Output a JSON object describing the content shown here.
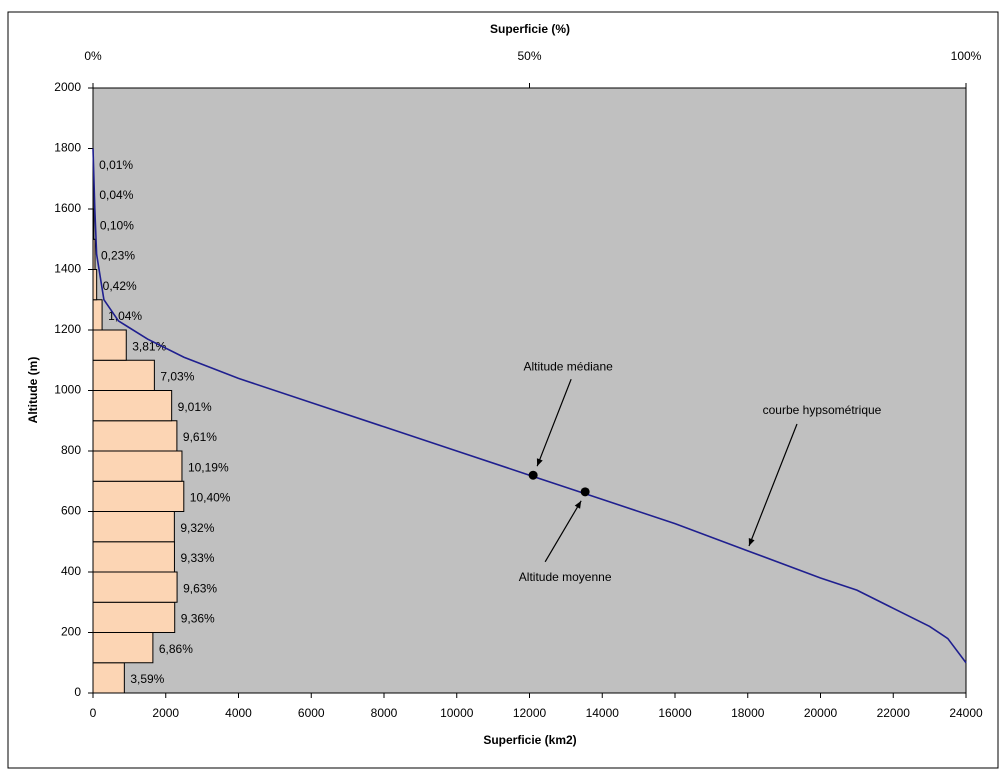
{
  "chart_data": {
    "type": "line",
    "xlabel": "Superficie (km2)",
    "x2label": "Superficie (%)",
    "ylabel": "Altitude (m)",
    "xlim": [
      0,
      24000
    ],
    "xticks": [
      0,
      2000,
      4000,
      6000,
      8000,
      10000,
      12000,
      14000,
      16000,
      18000,
      20000,
      22000,
      24000
    ],
    "x2lim": [
      0,
      100
    ],
    "x2ticks": [
      {
        "value": 0,
        "label": "0%"
      },
      {
        "value": 50,
        "label": "50%"
      },
      {
        "value": 100,
        "label": "100%"
      }
    ],
    "ylim": [
      0,
      2000
    ],
    "yticks": [
      0,
      200,
      400,
      600,
      800,
      1000,
      1200,
      1400,
      1600,
      1800,
      2000
    ],
    "background": "#c0c0c0",
    "color": "#1f1f8f",
    "x": [
      0,
      50,
      100,
      300,
      700,
      1500,
      2500,
      4000,
      6000,
      8000,
      10000,
      12000,
      14000,
      16000,
      18000,
      20000,
      21000,
      22000,
      23000,
      23500,
      24000
    ],
    "values": [
      1800,
      1600,
      1450,
      1300,
      1230,
      1170,
      1110,
      1040,
      960,
      880,
      800,
      720,
      640,
      560,
      470,
      380,
      340,
      280,
      220,
      180,
      100
    ],
    "bars": {
      "type": "bar",
      "color": "#fcd5b4",
      "bins": [
        0,
        100,
        200,
        300,
        400,
        500,
        600,
        700,
        800,
        900,
        1000,
        1100,
        1200,
        1300,
        1400,
        1500,
        1600,
        1700,
        1800
      ],
      "values": [
        3.59,
        6.86,
        9.36,
        9.63,
        9.33,
        9.32,
        10.4,
        10.19,
        9.61,
        9.01,
        7.03,
        3.81,
        1.04,
        0.42,
        0.23,
        0.1,
        0.04,
        0.01
      ],
      "value_labels": [
        "3,59%",
        "6,86%",
        "9,36%",
        "9,63%",
        "9,33%",
        "9,32%",
        "10,40%",
        "10,19%",
        "9,61%",
        "9,01%",
        "7,03%",
        "3,81%",
        "1,04%",
        "0,42%",
        "0,23%",
        "0,10%",
        "0,04%",
        "0,01%"
      ]
    },
    "points": [
      {
        "label": "Altitude médiane",
        "x": 12100,
        "y": 720
      },
      {
        "label": "Altitude moyenne",
        "x": 13530,
        "y": 665
      }
    ],
    "annotation": "courbe hypsométrique"
  }
}
